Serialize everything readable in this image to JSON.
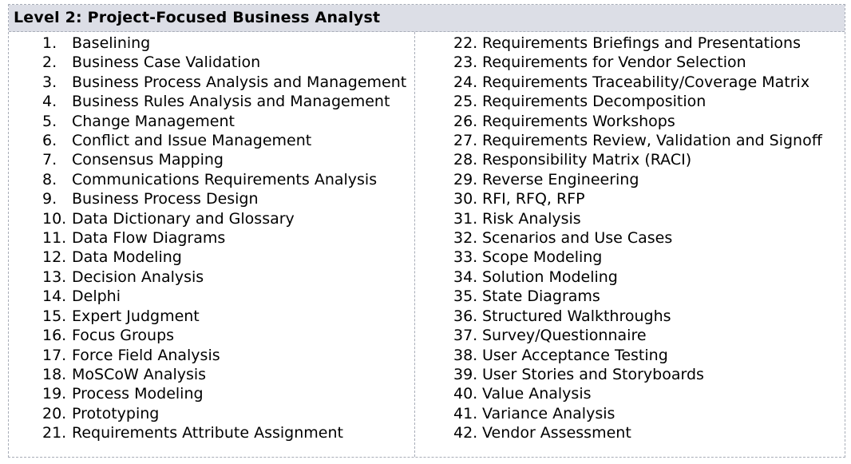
{
  "title": "Level 2: Project-Focused Business Analyst",
  "left_items": [
    {
      "n": "1.",
      "t": "Baselining"
    },
    {
      "n": "2.",
      "t": "Business Case Validation"
    },
    {
      "n": "3.",
      "t": "Business Process Analysis and Management"
    },
    {
      "n": "4.",
      "t": "Business Rules Analysis and Management"
    },
    {
      "n": "5.",
      "t": "Change Management"
    },
    {
      "n": "6.",
      "t": "Conflict and Issue Management"
    },
    {
      "n": "7.",
      "t": "Consensus Mapping"
    },
    {
      "n": "8.",
      "t": "Communications Requirements Analysis"
    },
    {
      "n": "9.",
      "t": "Business Process Design"
    },
    {
      "n": "10.",
      "t": "Data Dictionary and Glossary"
    },
    {
      "n": "11.",
      "t": "Data Flow Diagrams"
    },
    {
      "n": "12.",
      "t": "Data Modeling"
    },
    {
      "n": "13.",
      "t": "Decision Analysis"
    },
    {
      "n": "14.",
      "t": "Delphi"
    },
    {
      "n": "15.",
      "t": "Expert Judgment"
    },
    {
      "n": "16.",
      "t": "Focus Groups"
    },
    {
      "n": "17.",
      "t": "Force Field Analysis"
    },
    {
      "n": "18.",
      "t": "MoSCoW Analysis"
    },
    {
      "n": "19.",
      "t": "Process Modeling"
    },
    {
      "n": "20.",
      "t": "Prototyping"
    },
    {
      "n": "21.",
      "t": "Requirements Attribute Assignment"
    }
  ],
  "right_items": [
    {
      "n": "22.",
      "t": "Requirements Briefings and Presentations"
    },
    {
      "n": "23.",
      "t": "Requirements for Vendor Selection"
    },
    {
      "n": "24.",
      "t": "Requirements Traceability/Coverage Matrix"
    },
    {
      "n": "25.",
      "t": "Requirements Decomposition"
    },
    {
      "n": "26.",
      "t": "Requirements Workshops"
    },
    {
      "n": "27.",
      "t": "Requirements Review, Validation and Signoff"
    },
    {
      "n": "28.",
      "t": "Responsibility Matrix (RACI)"
    },
    {
      "n": "29.",
      "t": "Reverse Engineering"
    },
    {
      "n": "30.",
      "t": "RFI, RFQ, RFP"
    },
    {
      "n": "31.",
      "t": "Risk Analysis"
    },
    {
      "n": "32.",
      "t": "Scenarios and Use Cases"
    },
    {
      "n": "33.",
      "t": "Scope Modeling"
    },
    {
      "n": "34.",
      "t": "Solution Modeling"
    },
    {
      "n": "35.",
      "t": "State Diagrams"
    },
    {
      "n": "36.",
      "t": "Structured Walkthroughs"
    },
    {
      "n": "37.",
      "t": "Survey/Questionnaire"
    },
    {
      "n": "38.",
      "t": "User Acceptance Testing"
    },
    {
      "n": "39.",
      "t": "User Stories and Storyboards"
    },
    {
      "n": "40.",
      "t": "Value Analysis"
    },
    {
      "n": "41.",
      "t": "Variance Analysis"
    },
    {
      "n": "42.",
      "t": "Vendor Assessment"
    }
  ],
  "colors": {
    "header_bg": "#dcdee6",
    "border": "#a8adb8"
  }
}
